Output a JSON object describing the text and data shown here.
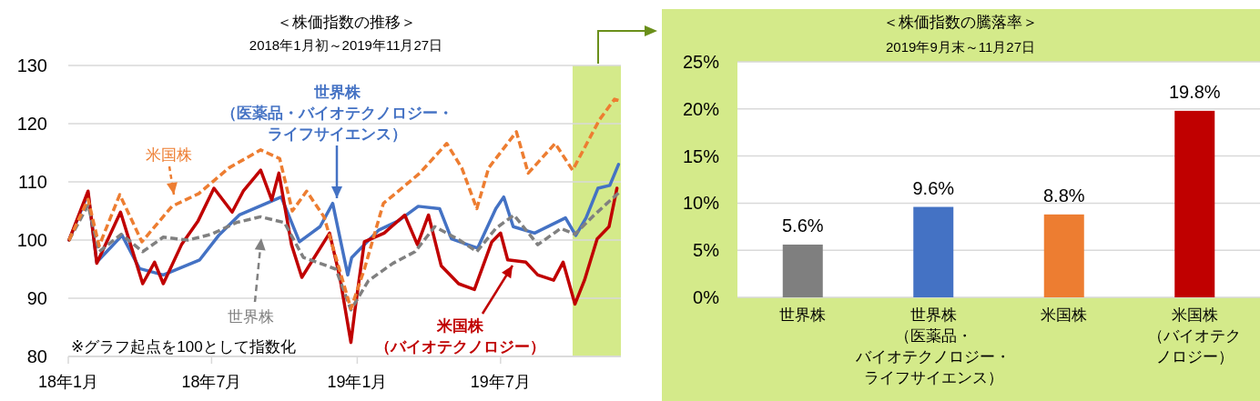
{
  "chart_data": [
    {
      "type": "line",
      "title": "＜株価指数の推移＞",
      "subtitle": "2018年1月初～2019年11月27日",
      "xlim": [
        "2018-01-01",
        "2019-11-30"
      ],
      "xticks": [
        {
          "value": "2018-01-01",
          "label": "18年1月"
        },
        {
          "value": "2018-07-01",
          "label": "18年7月"
        },
        {
          "value": "2019-01-01",
          "label": "19年1月"
        },
        {
          "value": "2019-07-01",
          "label": "19年7月"
        }
      ],
      "ylim": [
        80,
        130
      ],
      "yticks": [
        80,
        90,
        100,
        110,
        120,
        130
      ],
      "grid": "y",
      "bands": [
        {
          "axis": "x",
          "from": "2019-09-30",
          "to": "2019-11-30",
          "color": "#d4ea8a"
        }
      ],
      "annotations": [
        "※グラフ起点を100として指数化"
      ],
      "series": [
        {
          "name": "世界株",
          "color": "#808080",
          "line_style": "dashed",
          "x": [
            "2018-01-02",
            "2018-01-26",
            "2018-02-09",
            "2018-03-09",
            "2018-04-05",
            "2018-05-01",
            "2018-06-01",
            "2018-07-01",
            "2018-08-01",
            "2018-09-01",
            "2018-10-01",
            "2018-10-25",
            "2018-11-15",
            "2018-12-05",
            "2018-12-24",
            "2019-01-15",
            "2019-02-15",
            "2019-03-15",
            "2019-04-09",
            "2019-05-10",
            "2019-06-01",
            "2019-06-25",
            "2019-07-18",
            "2019-08-17",
            "2019-09-15",
            "2019-10-03",
            "2019-10-25",
            "2019-11-10",
            "2019-11-27"
          ],
          "values": [
            100,
            106,
            98,
            101,
            98,
            100.5,
            100,
            101,
            103,
            104,
            103,
            97,
            96,
            95,
            88,
            93,
            96,
            98,
            102.3,
            100,
            98,
            102,
            104.3,
            99.2,
            102,
            101,
            104,
            106,
            108.1
          ]
        },
        {
          "name": "米国株",
          "color": "#ed7d31",
          "line_style": "dashed",
          "x": [
            "2018-01-02",
            "2018-01-26",
            "2018-02-09",
            "2018-03-07",
            "2018-04-04",
            "2018-05-12",
            "2018-06-15",
            "2018-07-23",
            "2018-09-01",
            "2018-09-25",
            "2018-10-11",
            "2018-10-29",
            "2018-11-20",
            "2018-12-24",
            "2019-01-10",
            "2019-02-03",
            "2019-02-13",
            "2019-03-21",
            "2019-04-24",
            "2019-05-13",
            "2019-06-01",
            "2019-06-16",
            "2019-07-21",
            "2019-08-05",
            "2019-09-08",
            "2019-09-30",
            "2019-10-18",
            "2019-11-03",
            "2019-11-22",
            "2019-11-27"
          ],
          "values": [
            100,
            107,
            99,
            107.8,
            99.7,
            105.8,
            108,
            112.4,
            115.5,
            114,
            105,
            108.4,
            104,
            88.2,
            95,
            106.3,
            107.4,
            111.5,
            116.6,
            112.4,
            105.4,
            112.4,
            118.6,
            111.5,
            116.6,
            112,
            116.6,
            120.7,
            124.2,
            124
          ]
        },
        {
          "name": "世界株（医薬品・バイオテクノロジー・ライフサイエンス）",
          "color": "#4472c4",
          "line_style": "solid",
          "x": [
            "2018-01-02",
            "2018-01-26",
            "2018-02-06",
            "2018-03-10",
            "2018-04-01",
            "2018-05-01",
            "2018-06-16",
            "2018-07-10",
            "2018-08-05",
            "2018-09-27",
            "2018-10-20",
            "2018-11-15",
            "2018-12-01",
            "2018-12-20",
            "2018-12-25",
            "2019-01-28",
            "2019-02-22",
            "2019-03-19",
            "2019-04-15",
            "2019-04-30",
            "2019-06-02",
            "2019-06-25",
            "2019-07-05",
            "2019-07-17",
            "2019-08-13",
            "2019-09-21",
            "2019-10-04",
            "2019-10-17",
            "2019-11-01",
            "2019-11-16",
            "2019-11-27"
          ],
          "values": [
            100,
            108,
            96.2,
            100.8,
            95.1,
            94,
            96.6,
            100.8,
            104.3,
            107.4,
            99.7,
            102.3,
            106.3,
            94,
            97,
            101.7,
            103.3,
            105.8,
            105.4,
            100.2,
            98.6,
            105.4,
            107.4,
            102.3,
            101.2,
            103.8,
            100.8,
            103.8,
            108.9,
            109.4,
            113
          ]
        },
        {
          "name": "米国株（バイオテクノロジー）",
          "color": "#c00000",
          "line_style": "solid",
          "x": [
            "2018-01-02",
            "2018-01-26",
            "2018-02-06",
            "2018-03-08",
            "2018-04-05",
            "2018-04-20",
            "2018-05-01",
            "2018-05-24",
            "2018-06-14",
            "2018-07-04",
            "2018-07-27",
            "2018-08-10",
            "2018-09-01",
            "2018-09-15",
            "2018-09-24",
            "2018-10-10",
            "2018-10-23",
            "2018-11-27",
            "2018-12-10",
            "2018-12-24",
            "2018-12-29",
            "2019-01-10",
            "2019-02-04",
            "2019-03-02",
            "2019-03-18",
            "2019-04-01",
            "2019-04-17",
            "2019-05-09",
            "2019-05-29",
            "2019-06-20",
            "2019-07-01",
            "2019-07-10",
            "2019-08-02",
            "2019-08-17",
            "2019-09-06",
            "2019-09-18",
            "2019-10-03",
            "2019-10-15",
            "2019-10-31",
            "2019-11-15",
            "2019-11-25"
          ],
          "values": [
            100,
            108.4,
            96,
            104.8,
            92.5,
            96.2,
            92.5,
            99.2,
            103.3,
            108.9,
            104.8,
            108.4,
            112,
            106.9,
            111.5,
            99.2,
            93.6,
            101.2,
            93.6,
            82.4,
            87.9,
            99.7,
            101.2,
            104.3,
            99.2,
            104.3,
            95.6,
            92.5,
            91.5,
            99.7,
            101.2,
            96.6,
            96.2,
            94,
            93.1,
            96.2,
            89,
            93.1,
            100.2,
            102.3,
            108.9
          ]
        }
      ]
    },
    {
      "type": "bar",
      "title": "＜株価指数の騰落率＞",
      "subtitle": "2019年9月末～11月27日",
      "categories": [
        "世界株",
        "世界株（医薬品・バイオテクノロジー・ライフサイエンス）",
        "米国株",
        "米国株（バイオテクノロジー）"
      ],
      "values": [
        5.6,
        9.6,
        8.8,
        19.8
      ],
      "colors": [
        "#7f7f7f",
        "#4472c4",
        "#ed7d31",
        "#c00000"
      ],
      "value_labels": [
        "5.6%",
        "9.6%",
        "8.8%",
        "19.8%"
      ],
      "ylim": [
        0,
        25
      ],
      "yticks": [
        {
          "value": 0,
          "label": "0%"
        },
        {
          "value": 5,
          "label": "5%"
        },
        {
          "value": 10,
          "label": "10%"
        },
        {
          "value": 15,
          "label": "15%"
        },
        {
          "value": 20,
          "label": "20%"
        },
        {
          "value": 25,
          "label": "25%"
        }
      ],
      "grid": "y"
    }
  ]
}
